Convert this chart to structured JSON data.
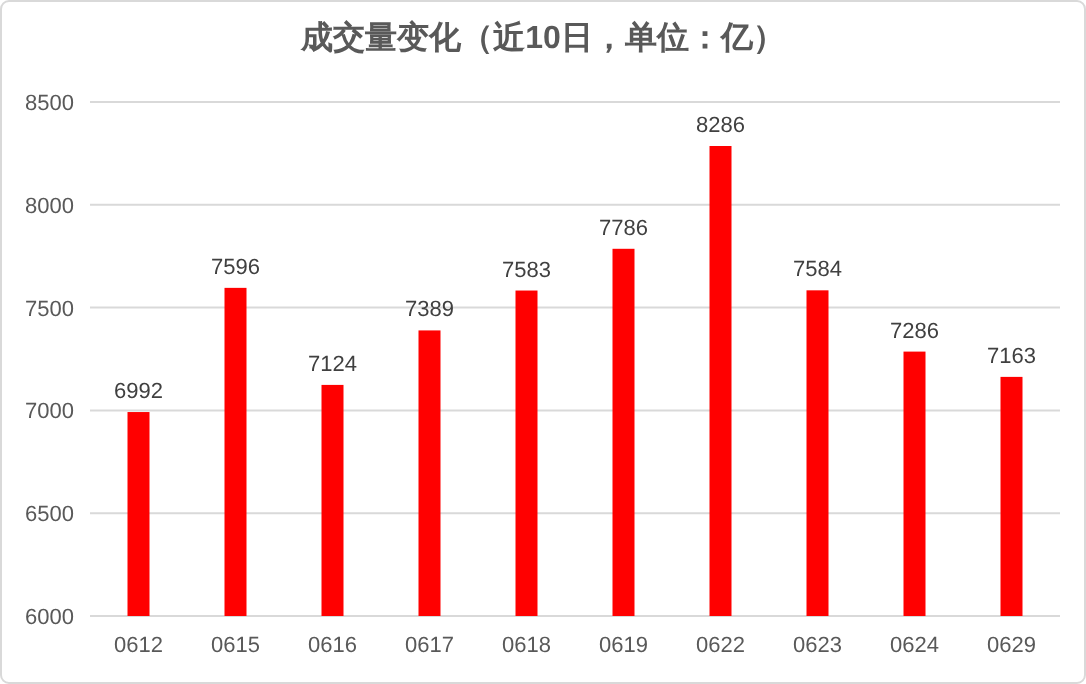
{
  "chart_data": {
    "type": "bar",
    "title": "成交量变化（近10日，单位：亿）",
    "categories": [
      "0612",
      "0615",
      "0616",
      "0617",
      "0618",
      "0619",
      "0622",
      "0623",
      "0624",
      "0629"
    ],
    "values": [
      6992,
      7596,
      7124,
      7389,
      7583,
      7786,
      8286,
      7584,
      7286,
      7163
    ],
    "color": "#ff0000",
    "ylim": [
      6000,
      8500
    ],
    "yticks": [
      6000,
      6500,
      7000,
      7500,
      8000,
      8500
    ],
    "grid": "y",
    "data_labels": true
  }
}
